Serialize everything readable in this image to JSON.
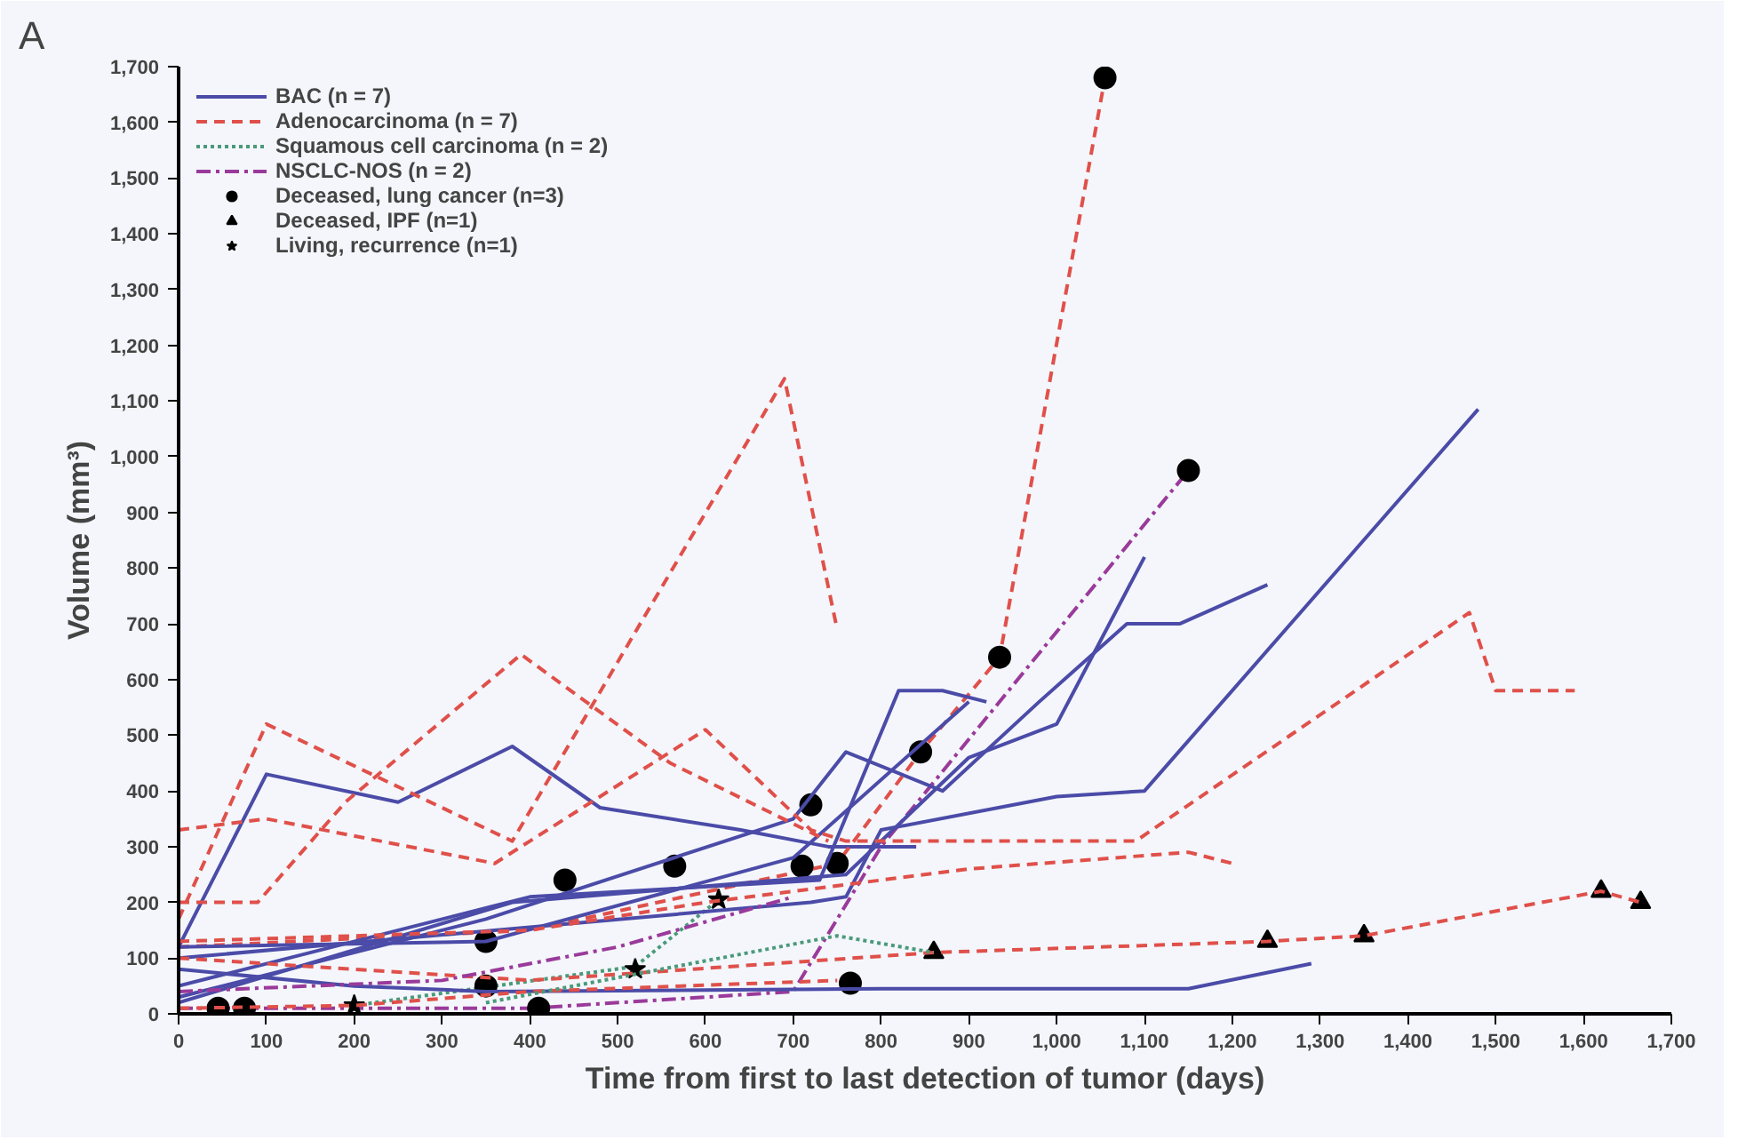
{
  "chart_data": {
    "type": "line",
    "xlabel": "Time from first to last detection of tumor (days)",
    "ylabel": "Volume (mm³)",
    "annotations": [
      "A"
    ],
    "xlim": [
      0,
      1700
    ],
    "ylim": [
      0,
      1700
    ],
    "xticks": [
      0,
      100,
      200,
      300,
      400,
      500,
      600,
      700,
      800,
      900,
      {
        "value": 1000,
        "label": "1,000"
      },
      {
        "value": 1100,
        "label": "1,100"
      },
      {
        "value": 1200,
        "label": "1,200"
      },
      {
        "value": 1300,
        "label": "1,300"
      },
      {
        "value": 1400,
        "label": "1,400"
      },
      {
        "value": 1500,
        "label": "1,500"
      },
      {
        "value": 1600,
        "label": "1,600"
      },
      {
        "value": 1700,
        "label": "1,700"
      }
    ],
    "yticks": [
      0,
      100,
      200,
      300,
      400,
      500,
      600,
      700,
      800,
      900,
      {
        "value": 1000,
        "label": "1,000"
      },
      {
        "value": 1100,
        "label": "1,100"
      },
      {
        "value": 1200,
        "label": "1,200"
      },
      {
        "value": 1300,
        "label": "1,300"
      },
      {
        "value": 1400,
        "label": "1,400"
      },
      {
        "value": 1500,
        "label": "1,500"
      },
      {
        "value": 1600,
        "label": "1,600"
      },
      {
        "value": 1700,
        "label": "1,700"
      }
    ],
    "grid": false,
    "legend": "top left",
    "series": [
      {
        "name": "BAC (n = 7)",
        "color": "#4b4ba8",
        "line_style": "solid",
        "marker": "none",
        "x": [
          0,
          100,
          250,
          380,
          480,
          640,
          740,
          840
        ],
        "values": [
          120,
          430,
          380,
          480,
          370,
          330,
          300,
          300
        ]
      },
      {
        "name": "Adenocarcinoma (n = 7)",
        "color": "#e0504a",
        "line_style": "dashed",
        "marker": "none",
        "x": [
          0,
          400,
          750,
          845,
          935,
          1055
        ],
        "values": [
          120,
          150,
          270,
          470,
          640,
          1680
        ]
      },
      {
        "name": "Squamous cell carcinoma (n = 2)",
        "color": "#4a9a7a",
        "line_style": "dotted",
        "marker": "none",
        "x": [
          200,
          520,
          615
        ],
        "values": [
          15,
          85,
          205
        ]
      },
      {
        "name": "NSCLC-NOS (n = 2)",
        "color": "#9a3a9a",
        "line_style": "dashdot",
        "marker": "none",
        "x": [
          0,
          400,
          700,
          800,
          1150
        ],
        "values": [
          10,
          10,
          40,
          300,
          975
        ]
      },
      {
        "name": "Deceased, lung cancer (n=3)",
        "type": "scatter",
        "color": "#000000",
        "marker": "circle",
        "x": [
          45,
          75,
          350,
          350,
          410,
          440,
          565,
          710,
          720,
          750,
          765,
          845,
          935,
          1055,
          1150
        ],
        "values": [
          10,
          10,
          130,
          50,
          10,
          240,
          265,
          265,
          375,
          270,
          55,
          470,
          640,
          1680,
          975
        ]
      },
      {
        "name": "Deceased, IPF (n=1)",
        "type": "scatter",
        "color": "#000000",
        "marker": "triangle",
        "x": [
          860,
          1240,
          1350,
          1620,
          1665
        ],
        "values": [
          110,
          130,
          140,
          220,
          200
        ]
      },
      {
        "name": "Living, recurrence (n=1)",
        "type": "scatter",
        "color": "#000000",
        "marker": "star",
        "x": [
          200,
          520,
          615
        ],
        "values": [
          15,
          80,
          205
        ]
      },
      {
        "color": "#4b4ba8",
        "line_style": "solid",
        "marker": "none",
        "x": [
          0,
          350,
          700,
          760,
          870,
          980,
          1080,
          1140,
          1240
        ],
        "values": [
          30,
          170,
          350,
          470,
          400,
          560,
          700,
          700,
          770
        ]
      },
      {
        "color": "#4b4ba8",
        "line_style": "solid",
        "marker": "none",
        "x": [
          0,
          400,
          730,
          820,
          870,
          920
        ],
        "values": [
          50,
          210,
          240,
          580,
          580,
          560
        ]
      },
      {
        "color": "#4b4ba8",
        "line_style": "solid",
        "marker": "none",
        "x": [
          0,
          380,
          760,
          900,
          1000,
          1100
        ],
        "values": [
          20,
          200,
          250,
          460,
          520,
          820
        ]
      },
      {
        "color": "#4b4ba8",
        "line_style": "solid",
        "marker": "none",
        "x": [
          0,
          720,
          760,
          800,
          1000,
          1100,
          1480
        ],
        "values": [
          100,
          200,
          210,
          330,
          390,
          400,
          1085
        ]
      },
      {
        "color": "#4b4ba8",
        "line_style": "solid",
        "marker": "none",
        "x": [
          0,
          200,
          350,
          800,
          1150,
          1290
        ],
        "values": [
          80,
          50,
          40,
          45,
          45,
          90
        ]
      },
      {
        "color": "#4b4ba8",
        "line_style": "solid",
        "marker": "none",
        "x": [
          0,
          350,
          700,
          900
        ],
        "values": [
          120,
          130,
          280,
          560
        ]
      },
      {
        "color": "#e0504a",
        "line_style": "dashed",
        "marker": "none",
        "x": [
          0,
          100,
          380,
          690,
          750
        ],
        "values": [
          170,
          520,
          310,
          1140,
          690
        ]
      },
      {
        "color": "#e0504a",
        "line_style": "dashed",
        "marker": "none",
        "x": [
          0,
          100,
          360,
          600,
          720,
          760,
          1090,
          1470,
          1500,
          1590
        ],
        "values": [
          330,
          350,
          270,
          510,
          330,
          310,
          310,
          720,
          580,
          580
        ]
      },
      {
        "color": "#e0504a",
        "line_style": "dashed",
        "marker": "none",
        "x": [
          0,
          90,
          190,
          390,
          560,
          740
        ],
        "values": [
          200,
          200,
          380,
          645,
          450,
          310
        ]
      },
      {
        "color": "#e0504a",
        "line_style": "dashed",
        "marker": "none",
        "x": [
          0,
          400,
          600,
          900,
          1150,
          1200
        ],
        "values": [
          130,
          150,
          200,
          260,
          290,
          270
        ]
      },
      {
        "color": "#e0504a",
        "line_style": "dashed",
        "marker": "none",
        "x": [
          0,
          400,
          860,
          1240,
          1350,
          1620,
          1665
        ],
        "values": [
          100,
          60,
          110,
          130,
          140,
          220,
          200
        ]
      },
      {
        "color": "#e0504a",
        "line_style": "dashed",
        "marker": "none",
        "x": [
          0,
          200,
          400,
          750
        ],
        "values": [
          10,
          15,
          40,
          60
        ]
      },
      {
        "color": "#4a9a7a",
        "line_style": "dotted",
        "marker": "none",
        "x": [
          350,
          750,
          860
        ],
        "values": [
          20,
          140,
          110
        ]
      },
      {
        "color": "#9a3a9a",
        "line_style": "dashdot",
        "marker": "none",
        "x": [
          0,
          300,
          500,
          700
        ],
        "values": [
          40,
          60,
          120,
          210
        ]
      }
    ]
  }
}
